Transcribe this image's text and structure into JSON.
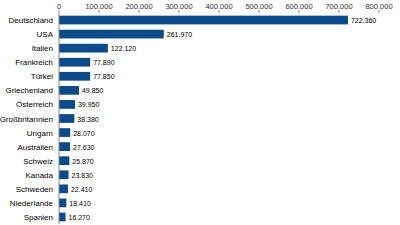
{
  "chart_data": {
    "type": "bar",
    "orientation": "horizontal",
    "categories": [
      "Deutschland",
      "USA",
      "Italien",
      "Frankreich",
      "Türkei",
      "Griechenland",
      "Österreich",
      "Großbritannien",
      "Ungarn",
      "Australien",
      "Schweiz",
      "Kanada",
      "Schweden",
      "Niederlande",
      "Spanien"
    ],
    "values": [
      722360,
      261970,
      122120,
      77890,
      77850,
      49850,
      39950,
      38380,
      28070,
      27630,
      25870,
      23830,
      22410,
      18410,
      16270
    ],
    "value_labels": [
      "722.360",
      "261.970",
      "122.120",
      "77.890",
      "77.850",
      "49.850",
      "39.950",
      "38.380",
      "28.070",
      "27.630",
      "25.870",
      "23.830",
      "22.410",
      "18.410",
      "16.270"
    ],
    "data_labels": true,
    "color": "#0b4a8b",
    "xlim": [
      0,
      800000
    ],
    "xticks": [
      0,
      {
        "value": 100000,
        "label": "100.000"
      },
      {
        "value": 200000,
        "label": "200.000"
      },
      {
        "value": 300000,
        "label": "300.000"
      },
      {
        "value": 400000,
        "label": "400.000"
      },
      {
        "value": 500000,
        "label": "500.000"
      },
      {
        "value": 600000,
        "label": "600.000"
      },
      {
        "value": 700000,
        "label": "700.000"
      },
      {
        "value": 800000,
        "label": "800.000"
      }
    ],
    "grid": false
  }
}
